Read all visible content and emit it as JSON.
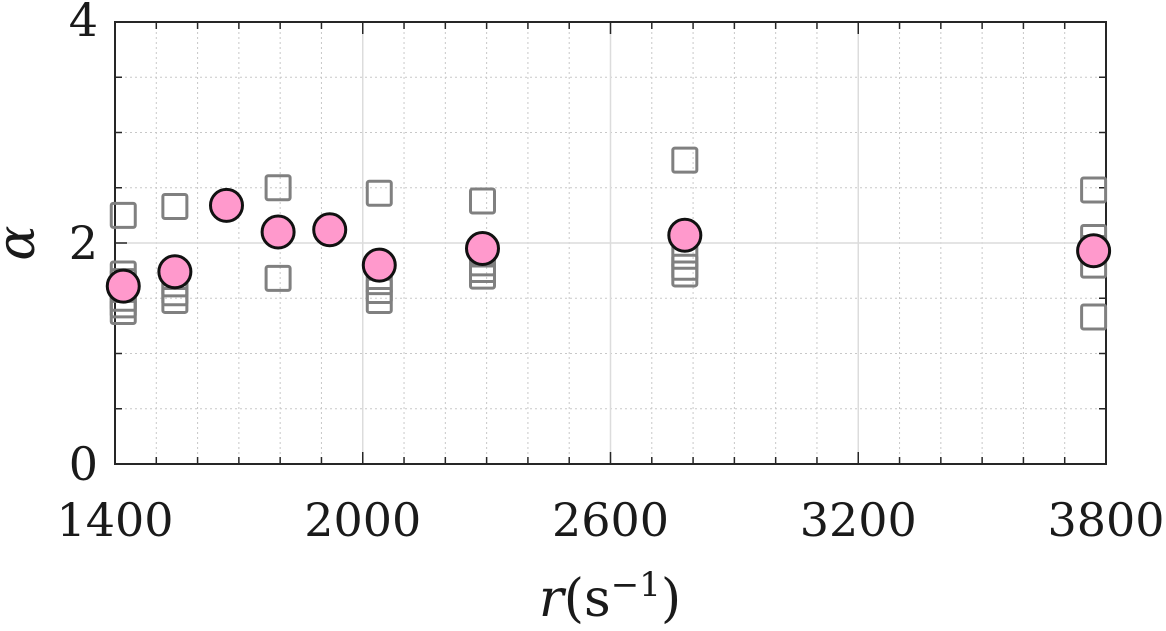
{
  "chart_data": {
    "type": "scatter",
    "title": "",
    "xlabel": {
      "var": "r",
      "lparen": "(",
      "unit": "s",
      "exp": "−1",
      "rparen": ")"
    },
    "ylabel": "α",
    "xlim": [
      1400,
      3800
    ],
    "ylim": [
      0,
      4
    ],
    "xticks": [
      1400,
      2000,
      2600,
      3200,
      3800
    ],
    "yticks": [
      0,
      2,
      4
    ],
    "xtick_labels": [
      "1400",
      "2000",
      "2600",
      "3200",
      "3800"
    ],
    "ytick_labels": [
      "0",
      "",
      "2",
      "",
      "4"
    ],
    "ytick_labels_shown": [
      "0",
      "2",
      "4"
    ],
    "x_minor_step": 100,
    "y_minor_step": 0.5,
    "grid": true,
    "series": [
      {
        "marker": "square",
        "color": "#808080",
        "points": [
          [
            1420,
            2.25
          ],
          [
            1420,
            1.72
          ],
          [
            1420,
            1.65
          ],
          [
            1420,
            1.58
          ],
          [
            1420,
            1.5
          ],
          [
            1420,
            1.44
          ],
          [
            1420,
            1.38
          ],
          [
            1545,
            2.33
          ],
          [
            1545,
            1.63
          ],
          [
            1545,
            1.55
          ],
          [
            1545,
            1.48
          ],
          [
            1795,
            2.5
          ],
          [
            1795,
            1.68
          ],
          [
            2040,
            2.45
          ],
          [
            2040,
            1.78
          ],
          [
            2040,
            1.65
          ],
          [
            2040,
            1.57
          ],
          [
            2040,
            1.48
          ],
          [
            2290,
            2.38
          ],
          [
            2290,
            1.9
          ],
          [
            2290,
            1.82
          ],
          [
            2290,
            1.76
          ],
          [
            2290,
            1.7
          ],
          [
            2780,
            2.75
          ],
          [
            2780,
            1.88
          ],
          [
            2780,
            1.78
          ],
          [
            2780,
            1.72
          ],
          [
            3770,
            2.48
          ],
          [
            3770,
            2.05
          ],
          [
            3770,
            1.95
          ],
          [
            3770,
            1.8
          ],
          [
            3770,
            1.33
          ]
        ]
      },
      {
        "marker": "circle",
        "color": "#ff99cc",
        "edge_color": "#111111",
        "points": [
          [
            1420,
            1.61
          ],
          [
            1545,
            1.74
          ],
          [
            1670,
            2.34
          ],
          [
            1795,
            2.1
          ],
          [
            1920,
            2.12
          ],
          [
            2040,
            1.8
          ],
          [
            2290,
            1.95
          ],
          [
            2780,
            2.07
          ],
          [
            3770,
            1.93
          ]
        ]
      }
    ]
  }
}
